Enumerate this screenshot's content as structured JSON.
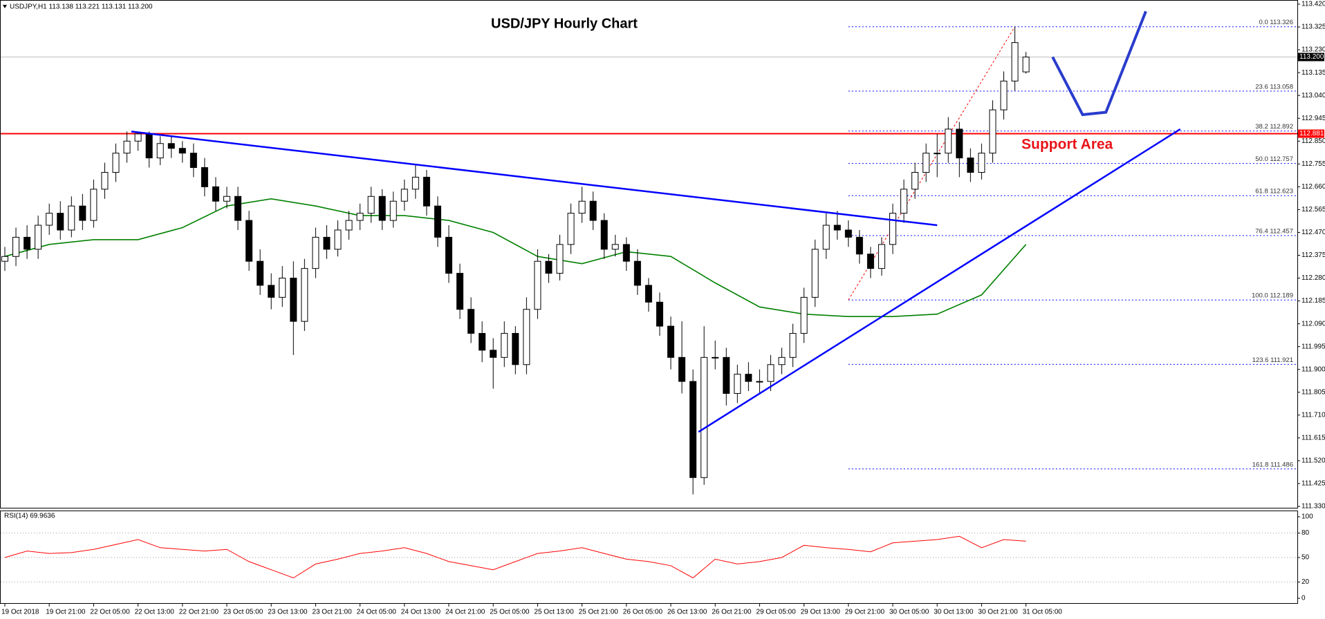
{
  "chart_data": [
    {
      "type": "candlestick",
      "title": "USD/JPY Hourly Chart",
      "header": "USDJPY,H1  113.138 113.221 113.131 113.200",
      "annotation": "Support Area",
      "categories": [
        "19 Oct 2018",
        null,
        null,
        null,
        "19 Oct 21:00",
        null,
        null,
        null,
        "22 Oct 05:00",
        null,
        null,
        null,
        "22 Oct 13:00",
        null,
        null,
        null,
        "22 Oct 21:00",
        null,
        null,
        null,
        "23 Oct 05:00",
        null,
        null,
        null,
        "23 Oct 13:00",
        null,
        null,
        null,
        "23 Oct 21:00",
        null,
        null,
        null,
        "24 Oct 05:00",
        null,
        null,
        null,
        "24 Oct 13:00",
        null,
        null,
        null,
        "24 Oct 21:00",
        null,
        null,
        null,
        "25 Oct 05:00",
        null,
        null,
        null,
        "25 Oct 13:00",
        null,
        null,
        null,
        "25 Oct 21:00",
        null,
        null,
        null,
        "26 Oct 05:00",
        null,
        null,
        null,
        "26 Oct 13:00",
        null,
        null,
        null,
        "26 Oct 21:00",
        null,
        null,
        null,
        "29 Oct 05:00",
        null,
        null,
        null,
        "29 Oct 13:00",
        null,
        null,
        null,
        "29 Oct 21:00",
        null,
        null,
        null,
        "30 Oct 05:00",
        null,
        null,
        null,
        "30 Oct 13:00",
        null,
        null,
        null,
        "30 Oct 21:00",
        null,
        null,
        null,
        "31 Oct 05:00"
      ],
      "open": [
        112.35,
        112.37,
        112.45,
        112.4,
        112.5,
        112.55,
        112.48,
        112.58,
        112.52,
        112.65,
        112.72,
        112.8,
        112.85,
        112.88,
        112.78,
        112.84,
        112.82,
        112.8,
        112.74,
        112.66,
        112.6,
        112.62,
        112.52,
        112.35,
        112.25,
        112.2,
        112.28,
        112.1,
        112.32,
        112.45,
        112.4,
        112.48,
        112.52,
        112.55,
        112.62,
        112.52,
        112.6,
        112.65,
        112.7,
        112.58,
        112.45,
        112.3,
        112.15,
        112.05,
        111.98,
        111.95,
        112.05,
        111.92,
        112.15,
        112.35,
        112.3,
        112.42,
        112.55,
        112.6,
        112.52,
        112.4,
        112.42,
        112.35,
        112.25,
        112.18,
        112.08,
        111.95,
        111.85,
        111.45,
        111.95,
        111.95,
        111.8,
        111.88,
        111.85,
        111.85,
        111.92,
        111.95,
        112.05,
        112.2,
        112.4,
        112.5,
        112.48,
        112.45,
        112.38,
        112.32,
        112.42,
        112.55,
        112.65,
        112.72,
        112.8,
        112.8,
        112.9,
        112.78,
        112.72,
        112.8,
        112.98,
        113.1,
        113.138
      ],
      "high": [
        112.41,
        112.49,
        112.5,
        112.54,
        112.59,
        112.6,
        112.62,
        112.63,
        112.69,
        112.76,
        112.84,
        112.89,
        112.89,
        112.89,
        112.87,
        112.87,
        112.85,
        112.84,
        112.78,
        112.7,
        112.66,
        112.66,
        112.56,
        112.4,
        112.3,
        112.33,
        112.35,
        112.36,
        112.49,
        112.5,
        112.52,
        112.56,
        112.59,
        112.66,
        112.65,
        112.64,
        112.69,
        112.75,
        112.73,
        112.62,
        112.5,
        112.34,
        112.2,
        112.1,
        112.03,
        112.1,
        112.08,
        112.2,
        112.4,
        112.38,
        112.46,
        112.59,
        112.66,
        112.64,
        112.55,
        112.46,
        112.45,
        112.4,
        112.28,
        112.22,
        112.12,
        112.1,
        111.9,
        112.08,
        112.02,
        111.99,
        111.92,
        111.93,
        111.9,
        111.96,
        111.99,
        112.09,
        112.24,
        112.44,
        112.55,
        112.56,
        112.52,
        112.48,
        112.41,
        112.45,
        112.59,
        112.69,
        112.76,
        112.84,
        112.88,
        112.95,
        112.93,
        112.82,
        112.84,
        113.02,
        113.14,
        113.326,
        113.221
      ],
      "low": [
        112.31,
        112.33,
        112.36,
        112.36,
        112.46,
        112.44,
        112.45,
        112.48,
        112.49,
        112.61,
        112.68,
        112.76,
        112.81,
        112.74,
        112.75,
        112.78,
        112.76,
        112.7,
        112.62,
        112.56,
        112.57,
        112.48,
        112.31,
        112.21,
        112.15,
        112.16,
        111.96,
        112.06,
        112.28,
        112.36,
        112.37,
        112.44,
        112.48,
        112.51,
        112.48,
        112.49,
        112.56,
        112.61,
        112.54,
        112.41,
        112.26,
        112.11,
        112.01,
        111.93,
        111.82,
        111.91,
        111.88,
        111.88,
        112.11,
        112.26,
        112.27,
        112.38,
        112.51,
        112.48,
        112.36,
        112.37,
        112.31,
        112.21,
        112.14,
        112.04,
        111.9,
        111.8,
        111.38,
        111.42,
        111.9,
        111.75,
        111.76,
        111.81,
        111.8,
        111.81,
        111.88,
        111.91,
        112.01,
        112.16,
        112.36,
        112.44,
        112.41,
        112.34,
        112.28,
        112.29,
        112.38,
        112.51,
        112.61,
        112.68,
        112.7,
        112.76,
        112.7,
        112.68,
        112.69,
        112.76,
        112.94,
        113.06,
        113.131
      ],
      "close": [
        112.37,
        112.45,
        112.4,
        112.5,
        112.55,
        112.48,
        112.58,
        112.52,
        112.65,
        112.72,
        112.8,
        112.85,
        112.88,
        112.78,
        112.84,
        112.82,
        112.8,
        112.74,
        112.66,
        112.6,
        112.62,
        112.52,
        112.35,
        112.25,
        112.2,
        112.28,
        112.1,
        112.32,
        112.45,
        112.4,
        112.48,
        112.52,
        112.55,
        112.62,
        112.52,
        112.6,
        112.65,
        112.7,
        112.58,
        112.45,
        112.3,
        112.15,
        112.05,
        111.98,
        111.95,
        112.05,
        111.92,
        112.15,
        112.35,
        112.3,
        112.42,
        112.55,
        112.6,
        112.52,
        112.4,
        112.42,
        112.35,
        112.25,
        112.18,
        112.08,
        111.95,
        111.85,
        111.45,
        111.95,
        111.95,
        111.8,
        111.88,
        111.85,
        111.85,
        111.92,
        111.95,
        112.05,
        112.2,
        112.4,
        112.5,
        112.48,
        112.45,
        112.38,
        112.32,
        112.42,
        112.55,
        112.65,
        112.72,
        112.8,
        112.8,
        112.9,
        112.78,
        112.72,
        112.8,
        112.98,
        113.1,
        113.26,
        113.2
      ],
      "ylim": [
        111.33,
        113.42
      ],
      "yticks": [
        {
          "value": 113.42,
          "label": "113.420"
        },
        113.325,
        {
          "value": 113.23,
          "label": "113.230"
        },
        113.135,
        {
          "value": 113.04,
          "label": "113.040"
        },
        112.945,
        {
          "value": 112.85,
          "label": "112.850"
        },
        112.755,
        {
          "value": 112.66,
          "label": "112.660"
        },
        112.565,
        {
          "value": 112.47,
          "label": "112.470"
        },
        112.375,
        {
          "value": 112.28,
          "label": "112.280"
        },
        112.185,
        {
          "value": 112.09,
          "label": "112.090"
        },
        111.995,
        {
          "value": 111.9,
          "label": "111.900"
        },
        111.805,
        {
          "value": 111.71,
          "label": "111.710"
        },
        111.615,
        {
          "value": 111.52,
          "label": "111.520"
        },
        111.425,
        {
          "value": 111.33,
          "label": "111.330"
        }
      ],
      "moving_average": {
        "color": "#008000",
        "x": [
          0,
          4,
          8,
          12,
          16,
          20,
          24,
          28,
          32,
          36,
          40,
          44,
          48,
          52,
          56,
          60,
          64,
          68,
          72,
          76,
          80,
          84,
          88,
          92
        ],
        "values": [
          112.37,
          112.42,
          112.44,
          112.44,
          112.49,
          112.58,
          112.61,
          112.58,
          112.54,
          112.54,
          112.52,
          112.47,
          112.37,
          112.34,
          112.39,
          112.37,
          112.26,
          112.16,
          112.13,
          112.12,
          112.12,
          112.13,
          112.21,
          112.42
        ]
      },
      "trendlines": [
        {
          "color": "#0000ff",
          "x": [
            11.4,
            84
          ],
          "values": [
            112.89,
            112.5
          ]
        },
        {
          "color": "#0000ff",
          "x": [
            62.5,
            105.9
          ],
          "values": [
            111.64,
            112.9
          ]
        }
      ],
      "projection": {
        "color": "#2a3ccc",
        "x": [
          94.4,
          97.1,
          99.2,
          102.8
        ],
        "values": [
          113.2,
          112.96,
          112.97,
          113.39
        ]
      },
      "fib_anchor": {
        "color": "#ff0000",
        "x": [
          76,
          91
        ],
        "values": [
          112.189,
          113.326
        ]
      },
      "fib_levels": [
        {
          "value": 113.326,
          "label": "0.0 113.326"
        },
        {
          "value": 113.058,
          "label": "23.6 113.058"
        },
        {
          "value": 112.892,
          "label": "38.2 112.892"
        },
        {
          "value": 112.757,
          "label": "50.0 112.757"
        },
        {
          "value": 112.623,
          "label": "61.8 112.623"
        },
        {
          "value": 112.457,
          "label": "76.4 112.457"
        },
        {
          "value": 112.189,
          "label": "100.0 112.189"
        },
        {
          "value": 111.921,
          "label": "123.6 111.921"
        },
        {
          "value": 111.486,
          "label": "161.8 111.486"
        }
      ],
      "support_level": {
        "value": 112.881,
        "label": "112.881",
        "color": "#ff0000"
      },
      "current_price": {
        "value": 113.2,
        "label": "113.200",
        "color": "#000000"
      }
    },
    {
      "type": "line",
      "label": "RSI(14) 69.9636",
      "color": "#ff0000",
      "x": [
        0,
        2,
        4,
        6,
        8,
        10,
        12,
        14,
        16,
        18,
        20,
        22,
        24,
        26,
        28,
        30,
        32,
        34,
        36,
        38,
        40,
        42,
        44,
        46,
        48,
        50,
        52,
        54,
        56,
        58,
        60,
        62,
        64,
        66,
        68,
        70,
        72,
        74,
        76,
        78,
        80,
        82,
        84,
        86,
        88,
        90,
        92
      ],
      "values": [
        50,
        58,
        55,
        56,
        60,
        66,
        72,
        62,
        60,
        58,
        60,
        45,
        35,
        25,
        42,
        48,
        55,
        58,
        62,
        55,
        45,
        40,
        35,
        45,
        55,
        58,
        62,
        55,
        48,
        45,
        40,
        25,
        48,
        42,
        45,
        50,
        65,
        62,
        60,
        57,
        68,
        70,
        72,
        76,
        62,
        72,
        69.9636
      ],
      "ylim": [
        0,
        100
      ],
      "yticks": [
        0,
        20,
        50,
        80,
        100
      ],
      "levels": [
        20,
        50,
        80
      ]
    }
  ]
}
